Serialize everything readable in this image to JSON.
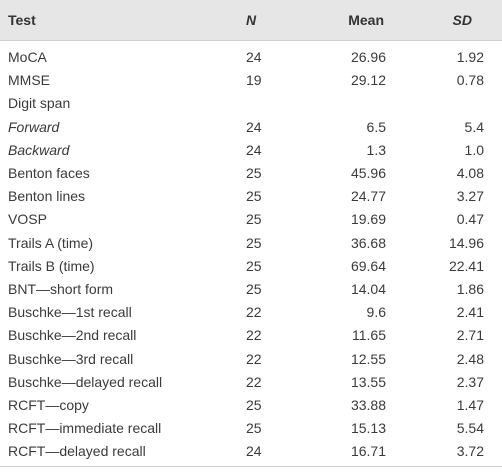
{
  "table": {
    "header": [
      "Test",
      "N",
      "Mean",
      "SD"
    ],
    "rows": [
      [
        "MoCA",
        "24",
        "26.96",
        "1.92"
      ],
      [
        "MMSE",
        "19",
        "29.12",
        "0.78"
      ],
      [
        "Digit span",
        null,
        null,
        null
      ],
      [
        "Forward",
        "24",
        "6.5",
        "5.4"
      ],
      [
        "Backward",
        "24",
        "1.3",
        "1.0"
      ],
      [
        "Benton faces",
        "25",
        "45.96",
        "4.08"
      ],
      [
        "Benton lines",
        "25",
        "24.77",
        "3.27"
      ],
      [
        "VOSP",
        "25",
        "19.69",
        "0.47"
      ],
      [
        "Trails A (time)",
        "25",
        "36.68",
        "14.96"
      ],
      [
        "Trails B (time)",
        "25",
        "69.64",
        "22.41"
      ],
      [
        "BNT—short form",
        "25",
        "14.04",
        "1.86"
      ],
      [
        "Buschke—1st recall",
        "22",
        "9.6",
        "2.41"
      ],
      [
        "Buschke—2nd recall",
        "22",
        "11.65",
        "2.71"
      ],
      [
        "Buschke—3rd recall",
        "22",
        "12.55",
        "2.48"
      ],
      [
        "Buschke—delayed recall",
        "22",
        "13.55",
        "2.37"
      ],
      [
        "RCFT—copy",
        "25",
        "33.88",
        "1.47"
      ],
      [
        "RCFT—immediate recall",
        "25",
        "15.13",
        "5.54"
      ],
      [
        "RCFT—delayed recall",
        "24",
        "16.71",
        "3.72"
      ]
    ]
  }
}
